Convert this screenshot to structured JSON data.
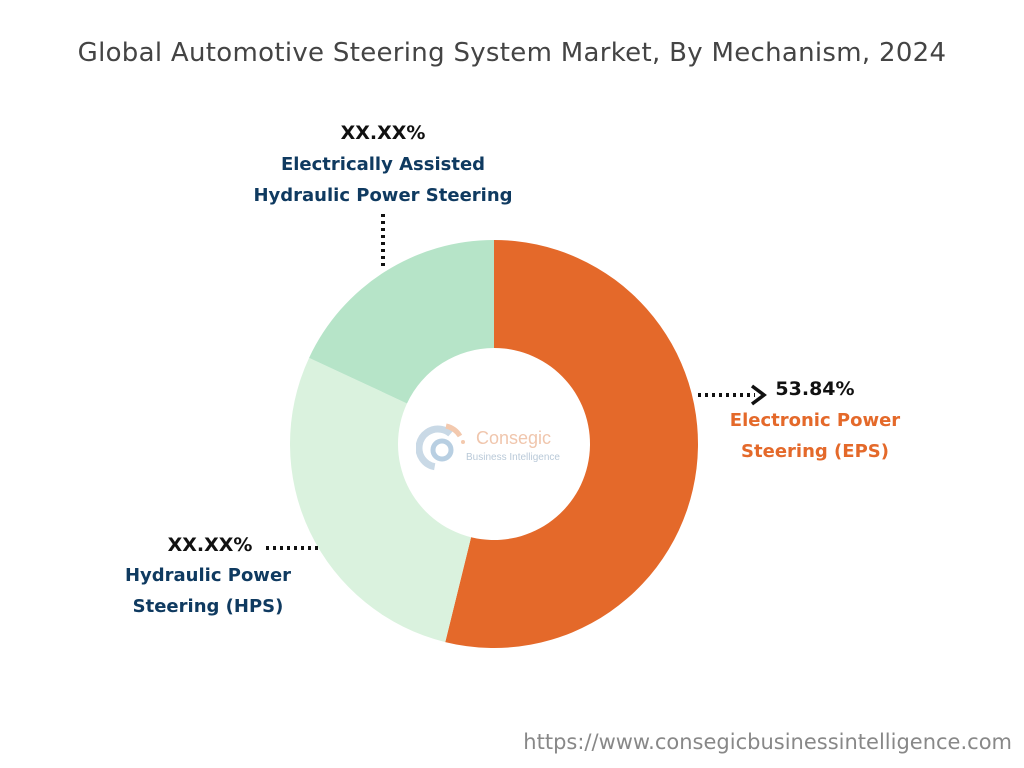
{
  "title": "Global Automotive Steering System Market, By Mechanism, 2024",
  "chart_data": {
    "type": "pie",
    "subtype": "donut",
    "title": "Global Automotive Steering System Market, By Mechanism, 2024",
    "slices": [
      {
        "name": "Electronic Power Steering (EPS)",
        "value": 53.84,
        "label": "53.84%",
        "color": "#e4692a"
      },
      {
        "name": "Hydraulic Power Steering (HPS)",
        "value": 28.1,
        "label": "XX.XX%",
        "color": "#daf2de"
      },
      {
        "name": "Electrically Assisted Hydraulic Power Steering",
        "value": 18.06,
        "label": "XX.XX%",
        "color": "#b6e4c8"
      }
    ],
    "labels": {
      "eps_line1": "Electronic Power",
      "eps_line2": "Steering (EPS)",
      "hps_line1": "Hydraulic Power",
      "hps_line2": "Steering (HPS)",
      "eahps_line1": "Electrically Assisted",
      "eahps_line2": "Hydraulic Power Steering"
    }
  },
  "logo": {
    "name": "Consegic",
    "tagline": "Business Intelligence"
  },
  "footer_url": "https://www.consegicbusinessintelligence.com"
}
